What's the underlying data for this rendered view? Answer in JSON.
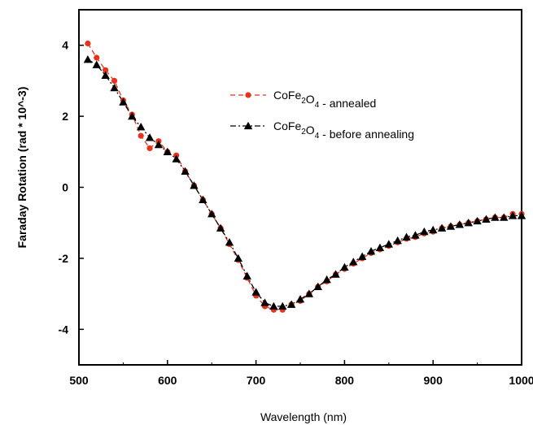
{
  "chart_data": {
    "type": "line",
    "title": "",
    "xlabel": "Wavelength (nm)",
    "ylabel": "Faraday Rotation (rad * 10^-3)",
    "xlim": [
      500,
      1000
    ],
    "ylim": [
      -5,
      5
    ],
    "xticks": [
      500,
      600,
      700,
      800,
      900,
      1000
    ],
    "yticks": [
      -4,
      -2,
      0,
      2,
      4
    ],
    "grid": false,
    "legend_position": "top-right",
    "series": [
      {
        "name": "CoFe2O4 - annealed",
        "legend": {
          "base": "CoFe",
          "sub1": "2",
          "mid": "O",
          "sub2": "4",
          "suffix": " - annealed"
        },
        "color": "#e8321e",
        "marker": "circle",
        "line": "dash",
        "x": [
          510,
          520,
          530,
          540,
          550,
          560,
          570,
          580,
          590,
          600,
          610,
          620,
          630,
          640,
          650,
          660,
          670,
          680,
          690,
          700,
          710,
          720,
          730,
          740,
          750,
          760,
          770,
          780,
          790,
          800,
          810,
          820,
          830,
          840,
          850,
          860,
          870,
          880,
          890,
          900,
          910,
          920,
          930,
          940,
          950,
          960,
          970,
          980,
          990,
          1000
        ],
        "y": [
          4.05,
          3.65,
          3.3,
          3.0,
          2.45,
          2.05,
          1.45,
          1.1,
          1.3,
          1.0,
          0.9,
          0.45,
          0.05,
          -0.35,
          -0.75,
          -1.15,
          -1.6,
          -2.05,
          -2.55,
          -3.05,
          -3.35,
          -3.45,
          -3.45,
          -3.3,
          -3.2,
          -3.0,
          -2.8,
          -2.65,
          -2.45,
          -2.3,
          -2.15,
          -2.0,
          -1.85,
          -1.75,
          -1.65,
          -1.55,
          -1.45,
          -1.4,
          -1.3,
          -1.25,
          -1.15,
          -1.1,
          -1.05,
          -1.0,
          -0.95,
          -0.9,
          -0.85,
          -0.85,
          -0.75,
          -0.75
        ]
      },
      {
        "name": "CoFe2O4 - before annealing",
        "legend": {
          "base": "CoFe",
          "sub1": "2",
          "mid": "O",
          "sub2": "4",
          "suffix": " - before annealing"
        },
        "color": "#000000",
        "marker": "triangle",
        "line": "dashdot",
        "x": [
          510,
          520,
          530,
          540,
          550,
          560,
          570,
          580,
          590,
          600,
          610,
          620,
          630,
          640,
          650,
          660,
          670,
          680,
          690,
          700,
          710,
          720,
          730,
          740,
          750,
          760,
          770,
          780,
          790,
          800,
          810,
          820,
          830,
          840,
          850,
          860,
          870,
          880,
          890,
          900,
          910,
          920,
          930,
          940,
          950,
          960,
          970,
          980,
          990,
          1000
        ],
        "y": [
          3.6,
          3.45,
          3.15,
          2.8,
          2.4,
          2.0,
          1.7,
          1.4,
          1.2,
          1.0,
          0.8,
          0.45,
          0.05,
          -0.35,
          -0.75,
          -1.15,
          -1.55,
          -2.0,
          -2.5,
          -2.95,
          -3.25,
          -3.35,
          -3.35,
          -3.3,
          -3.15,
          -3.0,
          -2.8,
          -2.6,
          -2.45,
          -2.25,
          -2.1,
          -1.95,
          -1.8,
          -1.7,
          -1.6,
          -1.5,
          -1.4,
          -1.35,
          -1.25,
          -1.2,
          -1.15,
          -1.1,
          -1.05,
          -1.0,
          -0.95,
          -0.9,
          -0.85,
          -0.85,
          -0.8,
          -0.8
        ]
      }
    ]
  }
}
